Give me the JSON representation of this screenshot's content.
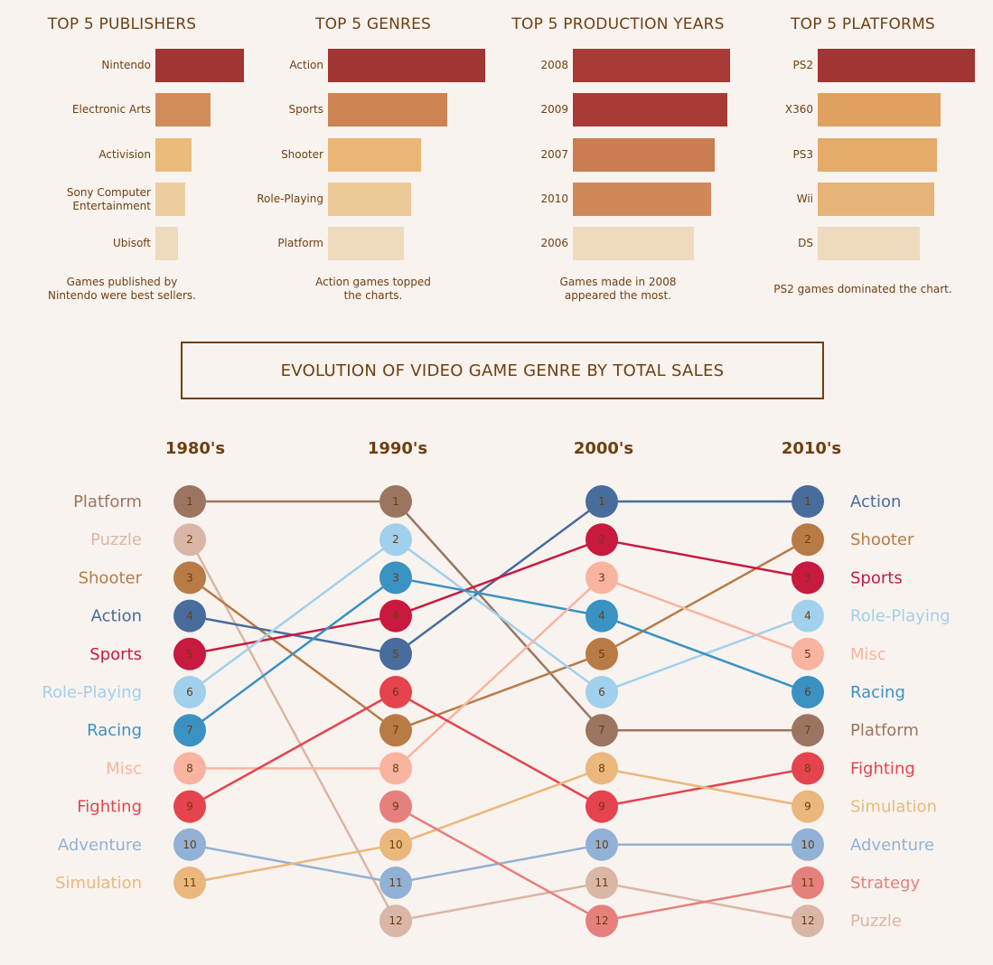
{
  "top_charts": [
    {
      "title": "TOP 5 PUBLISHERS",
      "caption": "Games published by\nNintendo were best sellers.",
      "rows": [
        {
          "label": "Nintendo",
          "value": 1.0,
          "color": "#a03534"
        },
        {
          "label": "Electronic Arts",
          "value": 0.62,
          "color": "#d18c5a"
        },
        {
          "label": "Activision",
          "value": 0.41,
          "color": "#ebbb79"
        },
        {
          "label": "Sony Computer\nEntertainment",
          "value": 0.34,
          "color": "#eccd9e"
        },
        {
          "label": "Ubisoft",
          "value": 0.26,
          "color": "#eedbbe"
        }
      ]
    },
    {
      "title": "TOP 5 GENRES",
      "caption": "Action games topped\nthe charts.",
      "rows": [
        {
          "label": "Action",
          "value": 1.0,
          "color": "#a03534"
        },
        {
          "label": "Sports",
          "value": 0.76,
          "color": "#cd8352"
        },
        {
          "label": "Shooter",
          "value": 0.59,
          "color": "#eab676"
        },
        {
          "label": "Role-Playing",
          "value": 0.53,
          "color": "#eccb99"
        },
        {
          "label": "Platform",
          "value": 0.48,
          "color": "#eedbbe"
        }
      ]
    },
    {
      "title": "TOP 5 PRODUCTION YEARS",
      "caption": "Games made in 2008\nappeared the most.",
      "rows": [
        {
          "label": "2008",
          "value": 1.0,
          "color": "#a83a35"
        },
        {
          "label": "2009",
          "value": 0.98,
          "color": "#a83a35"
        },
        {
          "label": "2007",
          "value": 0.9,
          "color": "#c97d50"
        },
        {
          "label": "2010",
          "value": 0.88,
          "color": "#d18858"
        },
        {
          "label": "2006",
          "value": 0.77,
          "color": "#eedbbe"
        }
      ]
    },
    {
      "title": "TOP 5 PLATFORMS",
      "caption": "PS2 games dominated the chart.",
      "rows": [
        {
          "label": "PS2",
          "value": 1.0,
          "color": "#a03534"
        },
        {
          "label": "X360",
          "value": 0.78,
          "color": "#e0a160"
        },
        {
          "label": "PS3",
          "value": 0.76,
          "color": "#e3aa69"
        },
        {
          "label": "Wii",
          "value": 0.74,
          "color": "#e6b476"
        },
        {
          "label": "DS",
          "value": 0.65,
          "color": "#eedbbe"
        }
      ]
    }
  ],
  "main_title": "EVOLUTION OF VIDEO GAME GENRE BY TOTAL SALES",
  "chart_data": {
    "type": "bump",
    "title": "EVOLUTION OF VIDEO GAME GENRE BY TOTAL SALES",
    "decades": [
      "1980's",
      "1990's",
      "2000's",
      "2010's"
    ],
    "series": [
      {
        "name": "Platform",
        "ranks": [
          1,
          1,
          7,
          7
        ],
        "color": "#9b7560"
      },
      {
        "name": "Puzzle",
        "ranks": [
          2,
          12,
          11,
          12
        ],
        "color": "#d9b6a5"
      },
      {
        "name": "Shooter",
        "ranks": [
          3,
          7,
          5,
          2
        ],
        "color": "#b87b45"
      },
      {
        "name": "Action",
        "ranks": [
          4,
          5,
          1,
          1
        ],
        "color": "#486c9c"
      },
      {
        "name": "Sports",
        "ranks": [
          5,
          4,
          2,
          3
        ],
        "color": "#c8193f"
      },
      {
        "name": "Role-Playing",
        "ranks": [
          6,
          2,
          6,
          4
        ],
        "color": "#a1d0ec"
      },
      {
        "name": "Racing",
        "ranks": [
          7,
          3,
          4,
          6
        ],
        "color": "#3a92c3"
      },
      {
        "name": "Misc",
        "ranks": [
          8,
          8,
          3,
          5
        ],
        "color": "#f8b4a0"
      },
      {
        "name": "Fighting",
        "ranks": [
          9,
          6,
          9,
          8
        ],
        "color": "#e5434d"
      },
      {
        "name": "Adventure",
        "ranks": [
          10,
          11,
          10,
          10
        ],
        "color": "#92b1d6"
      },
      {
        "name": "Simulation",
        "ranks": [
          11,
          10,
          8,
          9
        ],
        "color": "#eab87c"
      },
      {
        "name": "Strategy",
        "ranks": [
          null,
          9,
          12,
          11
        ],
        "color": "#e6807c"
      }
    ]
  }
}
